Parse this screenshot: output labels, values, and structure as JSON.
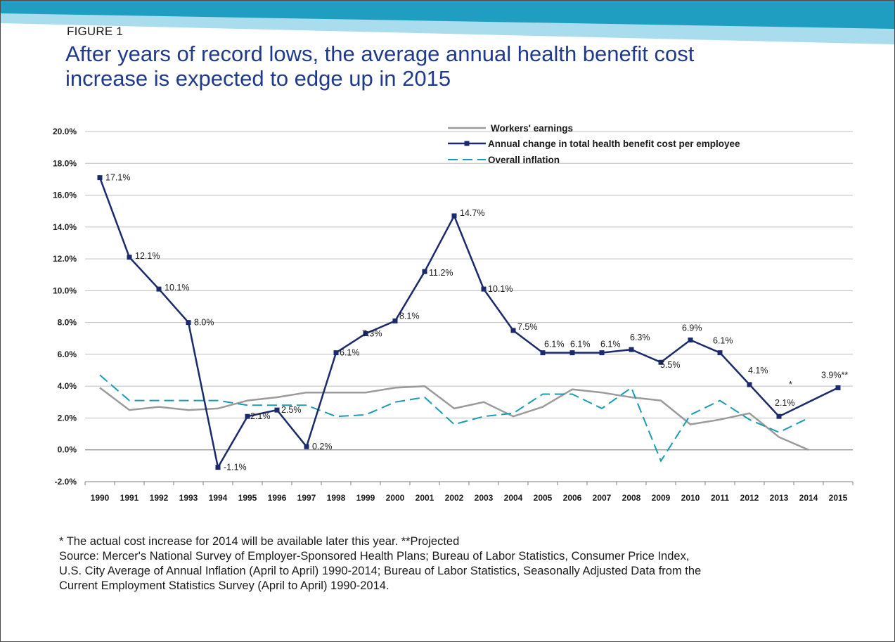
{
  "header": {
    "figure_label": "FIGURE 1",
    "title_line1": "After years of record lows, the average annual health benefit cost",
    "title_line2": "increase is expected to edge up in 2015"
  },
  "colors": {
    "health": "#1b2a6b",
    "earnings": "#9b9b9b",
    "inflation": "#1a9bb5",
    "banner_dark": "#1f9ec2",
    "banner_light": "#a9dcec"
  },
  "chart_data": {
    "type": "line",
    "x": [
      "1990",
      "1991",
      "1992",
      "1993",
      "1994",
      "1995",
      "1996",
      "1997",
      "1998",
      "1999",
      "2000",
      "2001",
      "2002",
      "2003",
      "2004",
      "2005",
      "2006",
      "2007",
      "2008",
      "2009",
      "2010",
      "2011",
      "2012",
      "2013",
      "2014",
      "2015"
    ],
    "ylim": [
      -2.0,
      20.0
    ],
    "yticks": [
      -2.0,
      0.0,
      2.0,
      4.0,
      6.0,
      8.0,
      10.0,
      12.0,
      14.0,
      16.0,
      18.0,
      20.0
    ],
    "ytick_labels": [
      "-2.0%",
      "0.0%",
      "2.0%",
      "4.0%",
      "6.0%",
      "8.0%",
      "10.0%",
      "12.0%",
      "14.0%",
      "16.0%",
      "18.0%",
      "20.0%"
    ],
    "grid": true,
    "legend_position": "top-right",
    "series": [
      {
        "name": "Workers' earnings",
        "style": "solid-gray",
        "values": [
          3.9,
          2.5,
          2.7,
          2.5,
          2.6,
          3.1,
          3.3,
          3.6,
          3.6,
          3.6,
          3.9,
          4.0,
          2.6,
          3.0,
          2.1,
          2.7,
          3.8,
          3.6,
          3.3,
          3.1,
          1.6,
          1.9,
          2.3,
          0.8,
          0.0,
          null
        ]
      },
      {
        "name": "Annual change in total health benefit cost per employee",
        "style": "solid-navy-markers",
        "values": [
          17.1,
          12.1,
          10.1,
          8.0,
          -1.1,
          2.1,
          2.5,
          0.2,
          6.1,
          7.3,
          8.1,
          11.2,
          14.7,
          10.1,
          7.5,
          6.1,
          6.1,
          6.1,
          6.3,
          5.5,
          6.9,
          6.1,
          4.1,
          2.1,
          null,
          3.9
        ],
        "labels": [
          "17.1%",
          "12.1%",
          "10.1%",
          "8.0%",
          "-1.1%",
          "2.1%",
          "2.5%",
          "0.2%",
          "6.1%",
          "7.3%",
          "8.1%",
          "11.2%",
          "14.7%",
          "10.1%",
          "7.5%",
          "6.1%",
          "6.1%",
          "6.1%",
          "6.3%",
          "5.5%",
          "6.9%",
          "6.1%",
          "4.1%",
          "2.1%",
          "*",
          "3.9%**"
        ]
      },
      {
        "name": "Overall inflation",
        "style": "dashed-teal",
        "values": [
          4.7,
          3.1,
          3.1,
          3.1,
          3.1,
          2.8,
          2.8,
          2.8,
          2.1,
          2.2,
          3.0,
          3.3,
          1.6,
          2.1,
          2.3,
          3.5,
          3.5,
          2.6,
          3.9,
          -0.7,
          2.2,
          3.1,
          1.9,
          1.1,
          2.0,
          null
        ]
      }
    ]
  },
  "footnotes": {
    "line1": "* The actual cost increase for 2014 will be available later this year.  **Projected",
    "line2": "Source: Mercer's National Survey of Employer-Sponsored Health Plans; Bureau of Labor Statistics, Consumer Price Index,",
    "line3": "U.S. City Average of Annual Inflation (April to April) 1990-2014; Bureau of Labor Statistics, Seasonally Adjusted Data from the",
    "line4": "Current Employment Statistics Survey (April to April) 1990-2014."
  }
}
